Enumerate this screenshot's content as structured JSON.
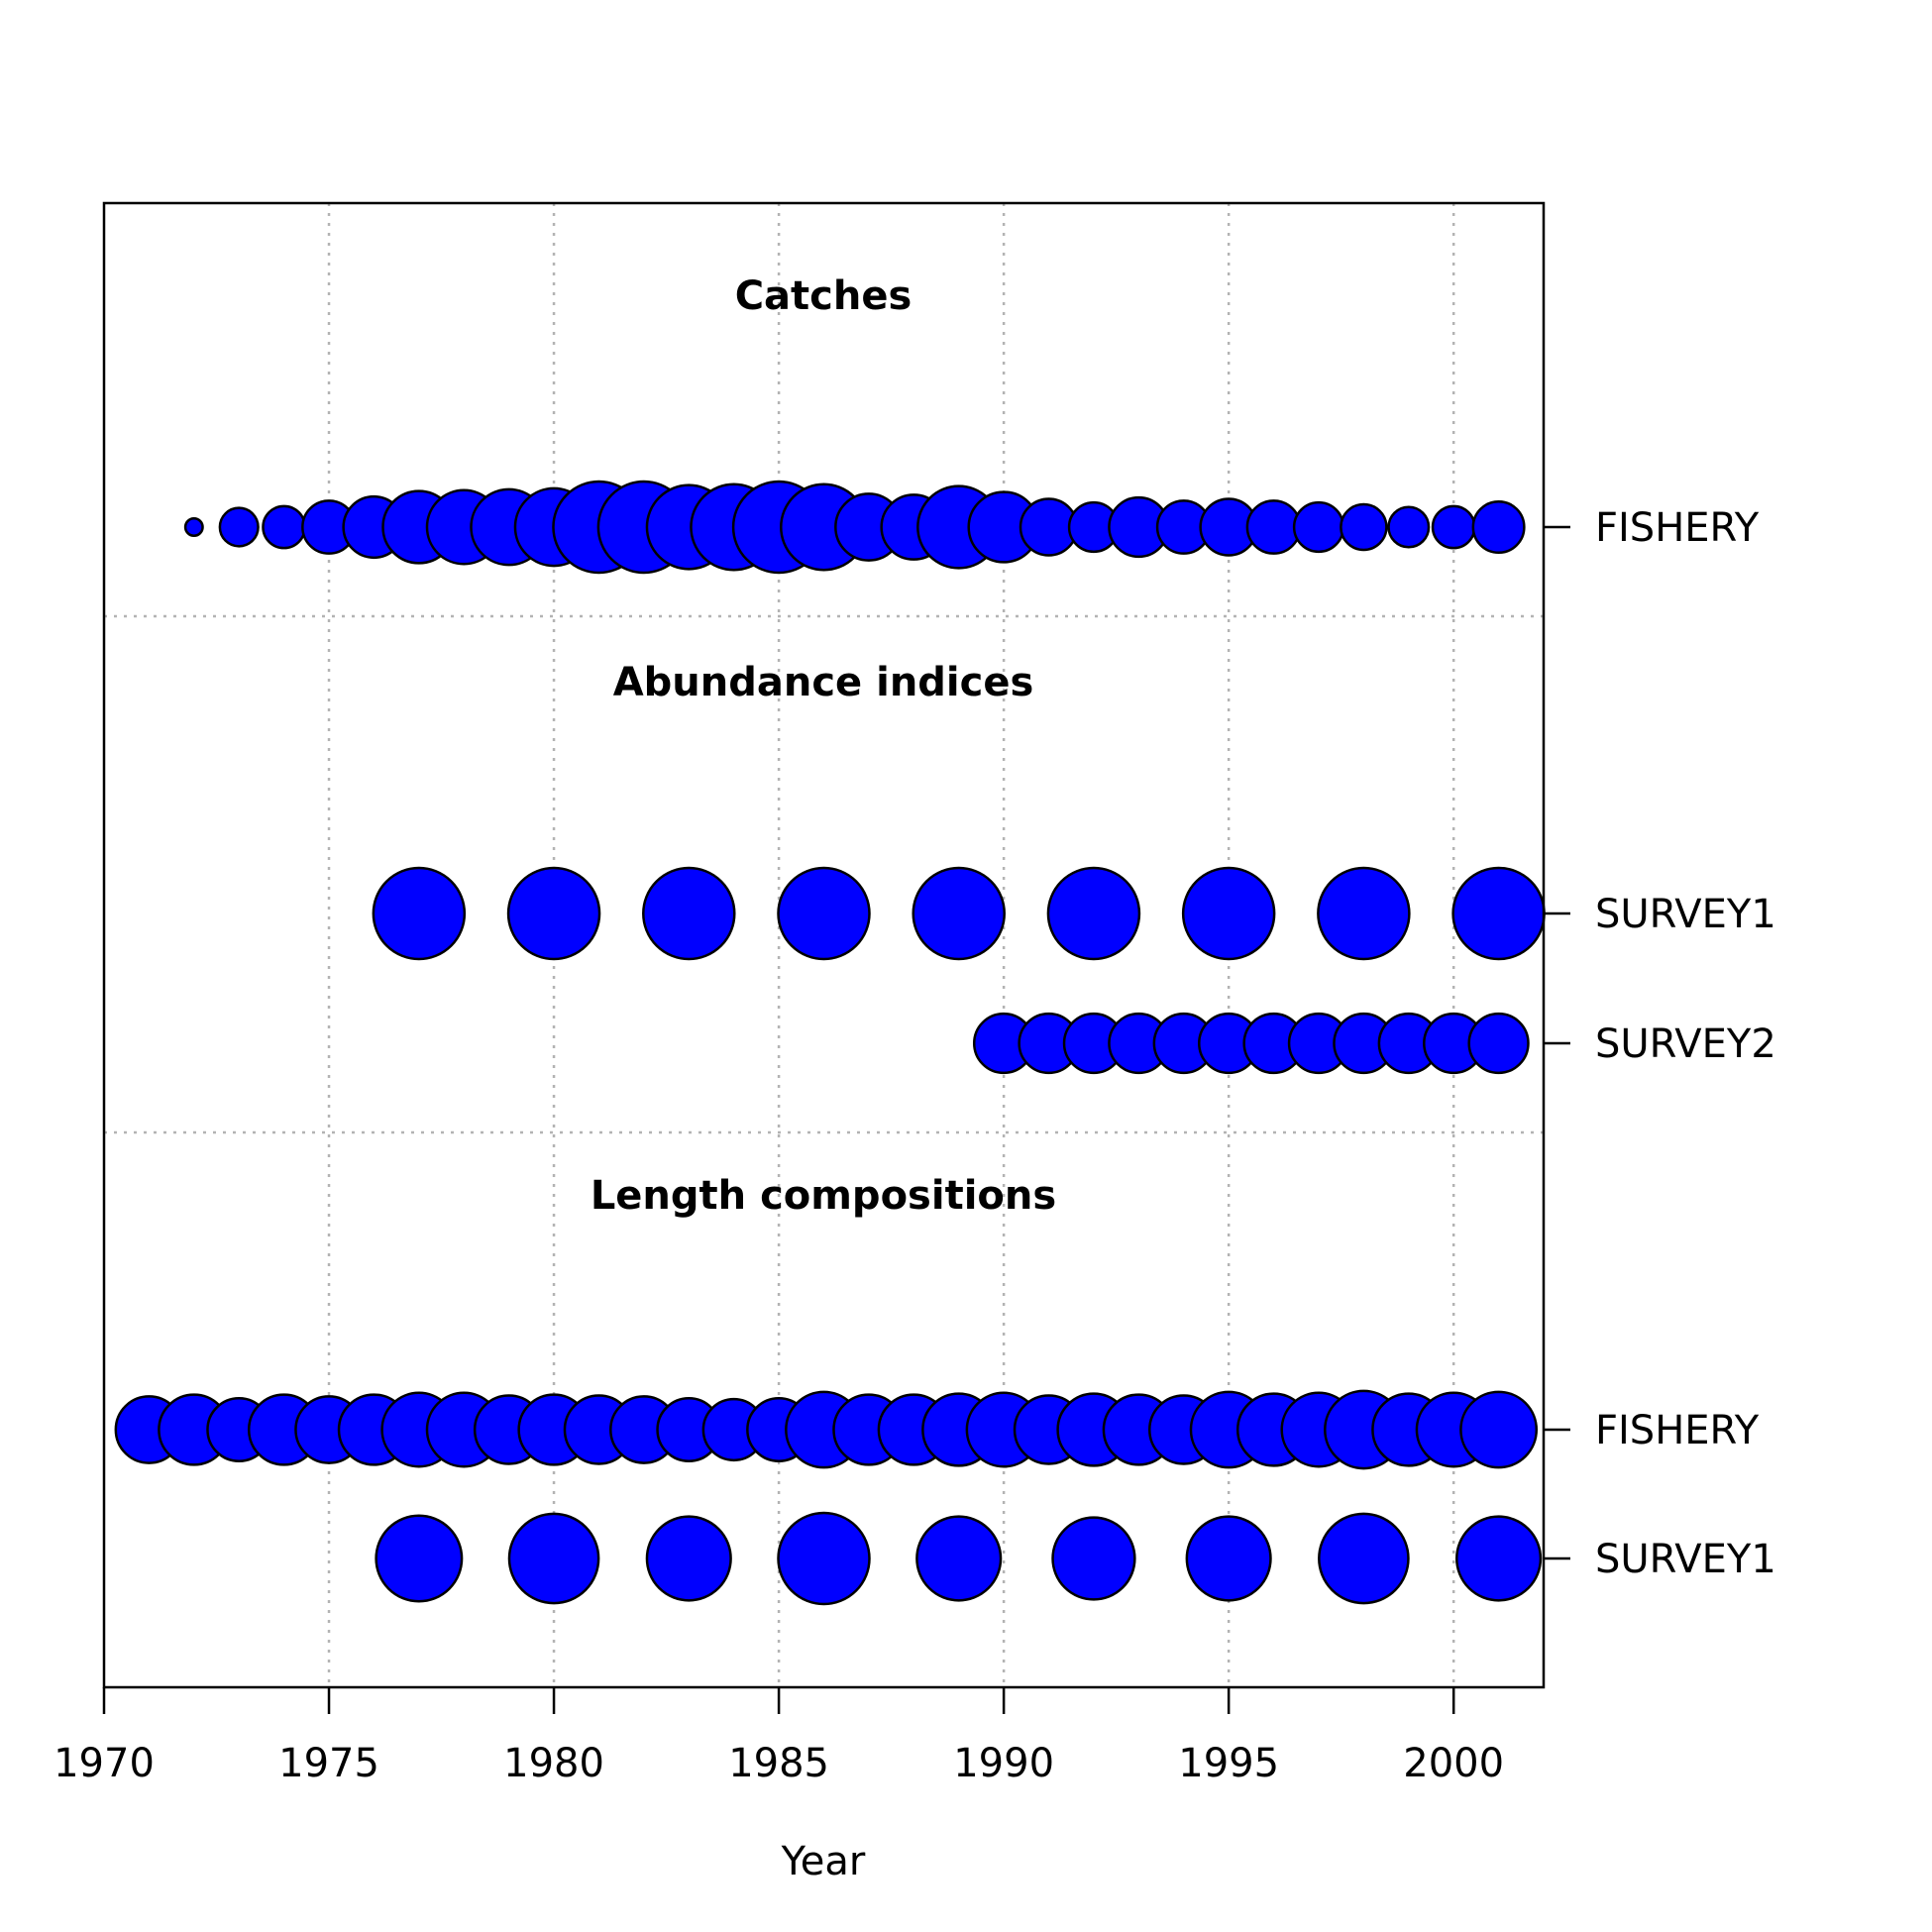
{
  "chart_data": {
    "type": "scatter",
    "xlabel": "Year",
    "xlim": [
      1970,
      2002
    ],
    "x_ticks": [
      1970,
      1975,
      1980,
      1985,
      1990,
      1995,
      2000
    ],
    "grid": true,
    "point_color": "#0000ff",
    "sections": [
      {
        "title": "Catches",
        "rows": [
          {
            "label": "FISHERY",
            "points": [
              {
                "year": 1972,
                "size": 0.19
              },
              {
                "year": 1973,
                "size": 0.42
              },
              {
                "year": 1974,
                "size": 0.46
              },
              {
                "year": 1975,
                "size": 0.58
              },
              {
                "year": 1976,
                "size": 0.67
              },
              {
                "year": 1977,
                "size": 0.79
              },
              {
                "year": 1978,
                "size": 0.81
              },
              {
                "year": 1979,
                "size": 0.83
              },
              {
                "year": 1980,
                "size": 0.85
              },
              {
                "year": 1981,
                "size": 1.0
              },
              {
                "year": 1982,
                "size": 1.0
              },
              {
                "year": 1983,
                "size": 0.92
              },
              {
                "year": 1984,
                "size": 0.94
              },
              {
                "year": 1985,
                "size": 1.0
              },
              {
                "year": 1986,
                "size": 0.94
              },
              {
                "year": 1987,
                "size": 0.73
              },
              {
                "year": 1988,
                "size": 0.71
              },
              {
                "year": 1989,
                "size": 0.9
              },
              {
                "year": 1990,
                "size": 0.77
              },
              {
                "year": 1991,
                "size": 0.62
              },
              {
                "year": 1992,
                "size": 0.54
              },
              {
                "year": 1993,
                "size": 0.65
              },
              {
                "year": 1994,
                "size": 0.58
              },
              {
                "year": 1995,
                "size": 0.62
              },
              {
                "year": 1996,
                "size": 0.58
              },
              {
                "year": 1997,
                "size": 0.54
              },
              {
                "year": 1998,
                "size": 0.5
              },
              {
                "year": 1999,
                "size": 0.44
              },
              {
                "year": 2000,
                "size": 0.46
              },
              {
                "year": 2001,
                "size": 0.56
              }
            ]
          }
        ]
      },
      {
        "title": "Abundance indices",
        "rows": [
          {
            "label": "SURVEY1",
            "points": [
              {
                "year": 1977,
                "size": 1.0
              },
              {
                "year": 1980,
                "size": 1.0
              },
              {
                "year": 1983,
                "size": 1.0
              },
              {
                "year": 1986,
                "size": 1.0
              },
              {
                "year": 1989,
                "size": 1.0
              },
              {
                "year": 1992,
                "size": 1.0
              },
              {
                "year": 1995,
                "size": 1.0
              },
              {
                "year": 1998,
                "size": 1.0
              },
              {
                "year": 2001,
                "size": 1.0
              }
            ]
          },
          {
            "label": "SURVEY2",
            "points": [
              {
                "year": 1990,
                "size": 0.65
              },
              {
                "year": 1991,
                "size": 0.65
              },
              {
                "year": 1992,
                "size": 0.65
              },
              {
                "year": 1993,
                "size": 0.65
              },
              {
                "year": 1994,
                "size": 0.65
              },
              {
                "year": 1995,
                "size": 0.65
              },
              {
                "year": 1996,
                "size": 0.65
              },
              {
                "year": 1997,
                "size": 0.65
              },
              {
                "year": 1998,
                "size": 0.65
              },
              {
                "year": 1999,
                "size": 0.65
              },
              {
                "year": 2000,
                "size": 0.65
              },
              {
                "year": 2001,
                "size": 0.65
              }
            ]
          }
        ]
      },
      {
        "title": "Length compositions",
        "rows": [
          {
            "label": "FISHERY",
            "points": [
              {
                "year": 1971,
                "size": 0.73
              },
              {
                "year": 1972,
                "size": 0.77
              },
              {
                "year": 1973,
                "size": 0.69
              },
              {
                "year": 1974,
                "size": 0.77
              },
              {
                "year": 1975,
                "size": 0.73
              },
              {
                "year": 1976,
                "size": 0.77
              },
              {
                "year": 1977,
                "size": 0.81
              },
              {
                "year": 1978,
                "size": 0.81
              },
              {
                "year": 1979,
                "size": 0.75
              },
              {
                "year": 1980,
                "size": 0.77
              },
              {
                "year": 1981,
                "size": 0.75
              },
              {
                "year": 1982,
                "size": 0.73
              },
              {
                "year": 1983,
                "size": 0.69
              },
              {
                "year": 1984,
                "size": 0.67
              },
              {
                "year": 1985,
                "size": 0.69
              },
              {
                "year": 1986,
                "size": 0.83
              },
              {
                "year": 1987,
                "size": 0.77
              },
              {
                "year": 1988,
                "size": 0.77
              },
              {
                "year": 1989,
                "size": 0.79
              },
              {
                "year": 1990,
                "size": 0.81
              },
              {
                "year": 1991,
                "size": 0.75
              },
              {
                "year": 1992,
                "size": 0.79
              },
              {
                "year": 1993,
                "size": 0.77
              },
              {
                "year": 1994,
                "size": 0.75
              },
              {
                "year": 1995,
                "size": 0.83
              },
              {
                "year": 1996,
                "size": 0.79
              },
              {
                "year": 1997,
                "size": 0.81
              },
              {
                "year": 1998,
                "size": 0.85
              },
              {
                "year": 1999,
                "size": 0.79
              },
              {
                "year": 2000,
                "size": 0.81
              },
              {
                "year": 2001,
                "size": 0.83
              }
            ]
          },
          {
            "label": "SURVEY1",
            "points": [
              {
                "year": 1977,
                "size": 0.94
              },
              {
                "year": 1980,
                "size": 0.98
              },
              {
                "year": 1983,
                "size": 0.92
              },
              {
                "year": 1986,
                "size": 1.0
              },
              {
                "year": 1989,
                "size": 0.92
              },
              {
                "year": 1992,
                "size": 0.9
              },
              {
                "year": 1995,
                "size": 0.92
              },
              {
                "year": 1998,
                "size": 0.98
              },
              {
                "year": 2001,
                "size": 0.92
              }
            ]
          }
        ]
      }
    ]
  }
}
